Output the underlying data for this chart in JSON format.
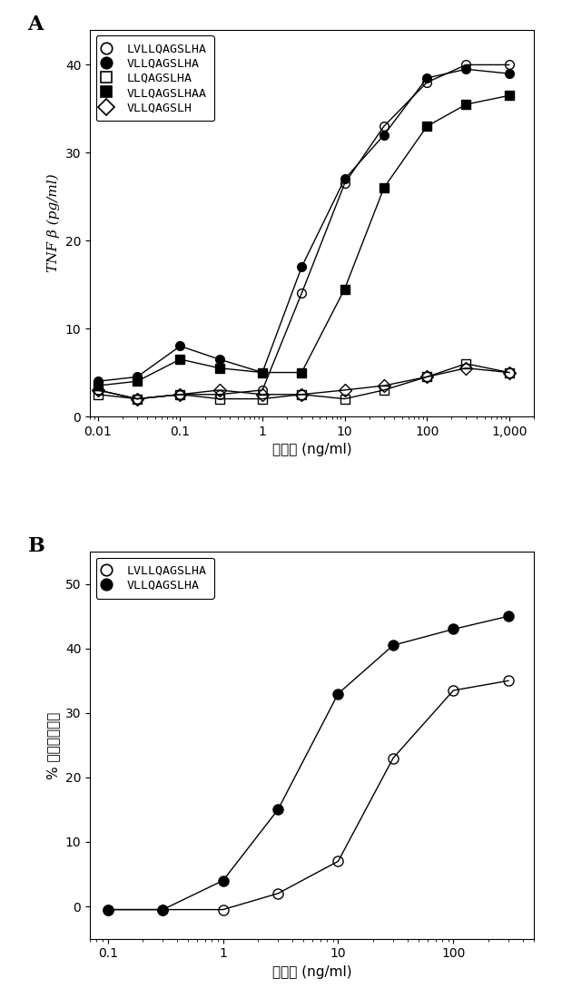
{
  "panel_A": {
    "panel_label": "A",
    "xlabel": "能浓度 (ng/ml)",
    "ylabel": "TNF β (pg/ml)",
    "ylim": [
      0,
      44
    ],
    "yticks": [
      0,
      10,
      20,
      30,
      40
    ],
    "xticks": [
      0.01,
      0.1,
      1,
      10,
      100,
      1000
    ],
    "xticklabels": [
      "0.01",
      "0.1",
      "1",
      "10",
      "100",
      "1,000"
    ],
    "xlim": [
      0.008,
      2000
    ],
    "series": [
      {
        "label": "LVLLQAGSLHA",
        "marker": "o",
        "fillstyle": "none",
        "x": [
          0.01,
          0.03,
          0.1,
          0.3,
          1,
          3,
          10,
          30,
          100,
          300,
          1000
        ],
        "y": [
          3.0,
          2.0,
          2.5,
          2.5,
          3.0,
          14.0,
          26.5,
          33.0,
          38.0,
          40.0,
          40.0
        ]
      },
      {
        "label": "VLLQAGSLHA",
        "marker": "o",
        "fillstyle": "full",
        "x": [
          0.01,
          0.03,
          0.1,
          0.3,
          1,
          3,
          10,
          30,
          100,
          300,
          1000
        ],
        "y": [
          4.0,
          4.5,
          8.0,
          6.5,
          5.0,
          17.0,
          27.0,
          32.0,
          38.5,
          39.5,
          39.0
        ]
      },
      {
        "label": "LLQAGSLHA",
        "marker": "s",
        "fillstyle": "none",
        "x": [
          0.01,
          0.03,
          0.1,
          0.3,
          1,
          3,
          10,
          30,
          100,
          300,
          1000
        ],
        "y": [
          2.5,
          2.0,
          2.5,
          2.0,
          2.0,
          2.5,
          2.0,
          3.0,
          4.5,
          6.0,
          5.0
        ]
      },
      {
        "label": "VLLQAGSLHAA",
        "marker": "s",
        "fillstyle": "full",
        "x": [
          0.01,
          0.03,
          0.1,
          0.3,
          1,
          3,
          10,
          30,
          100,
          300,
          1000
        ],
        "y": [
          3.5,
          4.0,
          6.5,
          5.5,
          5.0,
          5.0,
          14.5,
          26.0,
          33.0,
          35.5,
          36.5
        ]
      },
      {
        "label": "VLLQAGSLH",
        "marker": "D",
        "fillstyle": "none",
        "x": [
          0.01,
          0.03,
          0.1,
          0.3,
          1,
          3,
          10,
          30,
          100,
          300,
          1000
        ],
        "y": [
          3.0,
          2.0,
          2.5,
          3.0,
          2.5,
          2.5,
          3.0,
          3.5,
          4.5,
          5.5,
          5.0
        ]
      }
    ]
  },
  "panel_B": {
    "panel_label": "B",
    "xlabel": "能浓度 (ng/ml)",
    "ylabel": "% 特异性溶解率",
    "ylim": [
      -5,
      55
    ],
    "yticks": [
      0,
      10,
      20,
      30,
      40,
      50
    ],
    "xticks": [
      0.1,
      1,
      10,
      100
    ],
    "xticklabels": [
      "0.1",
      "1",
      "10",
      "100"
    ],
    "xlim": [
      0.07,
      500
    ],
    "series": [
      {
        "label": "LVLLQAGSLHA",
        "marker": "o",
        "fillstyle": "none",
        "x": [
          0.1,
          0.3,
          1,
          3,
          10,
          30,
          100,
          300
        ],
        "y": [
          -0.5,
          -0.5,
          -0.5,
          2.0,
          7.0,
          23.0,
          33.5,
          35.0
        ]
      },
      {
        "label": "VLLQAGSLHA",
        "marker": "o",
        "fillstyle": "full",
        "x": [
          0.1,
          0.3,
          1,
          3,
          10,
          30,
          100,
          300
        ],
        "y": [
          -0.5,
          -0.5,
          4.0,
          15.0,
          33.0,
          40.5,
          43.0,
          45.0
        ]
      }
    ]
  },
  "fig_width": 6.19,
  "fig_height": 10.89,
  "dpi": 100
}
